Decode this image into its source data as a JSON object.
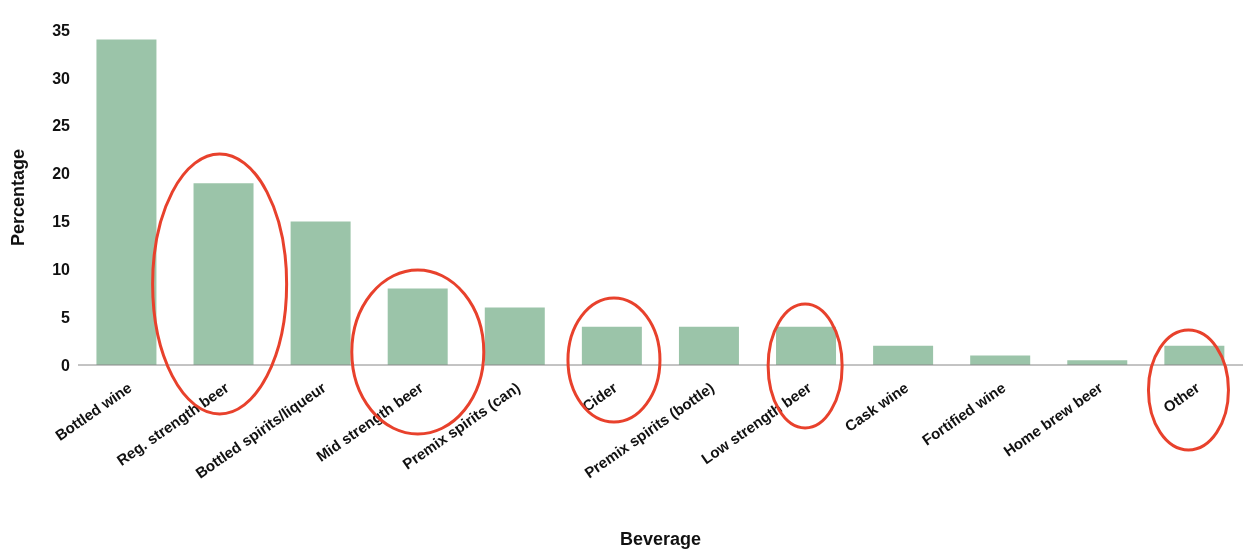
{
  "chart_data": {
    "type": "bar",
    "xlabel": "Beverage",
    "ylabel": "Percentage",
    "categories": [
      "Bottled wine",
      "Reg. strength beer",
      "Bottled spirits/liqueur",
      "Mid strength beer",
      "Premix spirits (can)",
      "Cider",
      "Premix spirits (bottle)",
      "Low strength beer",
      "Cask wine",
      "Fortified wine",
      "Home brew beer",
      "Other"
    ],
    "values": [
      34,
      19,
      15,
      8,
      6,
      4,
      4,
      4,
      2,
      1,
      0.5,
      2
    ],
    "color": "#9bc4a9",
    "ylim": [
      0,
      35
    ],
    "yticks": [
      0,
      5,
      10,
      15,
      20,
      25,
      30,
      35
    ],
    "grid": false,
    "legend": false
  }
}
